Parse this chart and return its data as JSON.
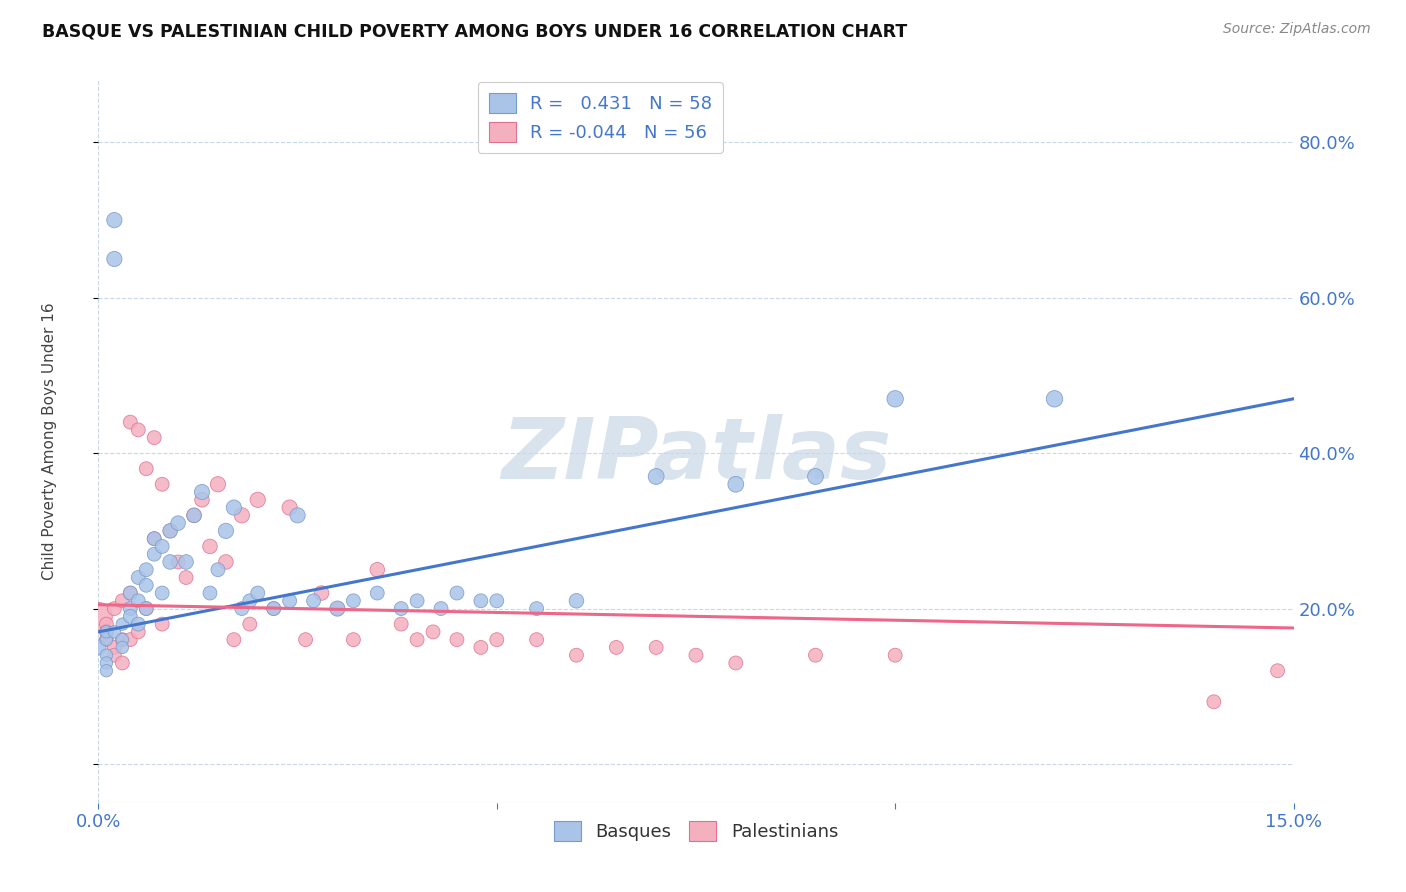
{
  "title": "BASQUE VS PALESTINIAN CHILD POVERTY AMONG BOYS UNDER 16 CORRELATION CHART",
  "source": "Source: ZipAtlas.com",
  "ylabel": "Child Poverty Among Boys Under 16",
  "xlim": [
    0.0,
    0.15
  ],
  "ylim": [
    -0.05,
    0.88
  ],
  "xticks": [
    0.0,
    0.05,
    0.1,
    0.15
  ],
  "xtick_labels": [
    "0.0%",
    "",
    "",
    "15.0%"
  ],
  "yticks_right": [
    0.0,
    0.2,
    0.4,
    0.6,
    0.8
  ],
  "ytick_right_labels": [
    "",
    "20.0%",
    "40.0%",
    "60.0%",
    "80.0%"
  ],
  "basque_color": "#aac4e8",
  "basque_edge": "#7799cc",
  "palestinian_color": "#f5b0c0",
  "palestinian_edge": "#e07090",
  "trend_blue": "#4477cc",
  "trend_pink": "#ee6688",
  "R_basque": 0.431,
  "N_basque": 58,
  "R_palestinian": -0.044,
  "N_palestinian": 56,
  "watermark": "ZIPatlas",
  "basque_x": [
    0.0,
    0.001,
    0.001,
    0.001,
    0.001,
    0.001,
    0.002,
    0.002,
    0.002,
    0.003,
    0.003,
    0.003,
    0.004,
    0.004,
    0.004,
    0.005,
    0.005,
    0.005,
    0.006,
    0.006,
    0.006,
    0.007,
    0.007,
    0.008,
    0.008,
    0.009,
    0.009,
    0.01,
    0.011,
    0.012,
    0.013,
    0.014,
    0.015,
    0.016,
    0.017,
    0.018,
    0.019,
    0.02,
    0.022,
    0.024,
    0.025,
    0.027,
    0.03,
    0.032,
    0.035,
    0.038,
    0.04,
    0.043,
    0.045,
    0.048,
    0.05,
    0.055,
    0.06,
    0.07,
    0.08,
    0.09,
    0.1,
    0.12
  ],
  "basque_y": [
    0.15,
    0.14,
    0.13,
    0.12,
    0.16,
    0.17,
    0.65,
    0.7,
    0.17,
    0.16,
    0.15,
    0.18,
    0.22,
    0.2,
    0.19,
    0.24,
    0.21,
    0.18,
    0.25,
    0.23,
    0.2,
    0.27,
    0.29,
    0.28,
    0.22,
    0.3,
    0.26,
    0.31,
    0.26,
    0.32,
    0.35,
    0.22,
    0.25,
    0.3,
    0.33,
    0.2,
    0.21,
    0.22,
    0.2,
    0.21,
    0.32,
    0.21,
    0.2,
    0.21,
    0.22,
    0.2,
    0.21,
    0.2,
    0.22,
    0.21,
    0.21,
    0.2,
    0.21,
    0.37,
    0.36,
    0.37,
    0.47,
    0.47
  ],
  "basque_sizes": [
    120,
    80,
    80,
    80,
    80,
    80,
    120,
    120,
    80,
    80,
    80,
    80,
    100,
    100,
    100,
    100,
    100,
    100,
    100,
    100,
    100,
    100,
    100,
    100,
    100,
    110,
    110,
    110,
    110,
    110,
    120,
    100,
    100,
    120,
    120,
    100,
    100,
    100,
    100,
    100,
    120,
    100,
    120,
    100,
    100,
    100,
    100,
    100,
    100,
    100,
    100,
    100,
    110,
    130,
    130,
    130,
    140,
    140
  ],
  "palestinian_x": [
    0.0,
    0.001,
    0.001,
    0.001,
    0.002,
    0.002,
    0.002,
    0.003,
    0.003,
    0.003,
    0.004,
    0.004,
    0.004,
    0.005,
    0.005,
    0.006,
    0.006,
    0.007,
    0.007,
    0.008,
    0.008,
    0.009,
    0.01,
    0.011,
    0.012,
    0.013,
    0.014,
    0.015,
    0.016,
    0.017,
    0.018,
    0.019,
    0.02,
    0.022,
    0.024,
    0.026,
    0.028,
    0.03,
    0.032,
    0.035,
    0.038,
    0.04,
    0.042,
    0.045,
    0.048,
    0.05,
    0.055,
    0.06,
    0.065,
    0.07,
    0.075,
    0.08,
    0.09,
    0.1,
    0.14,
    0.148
  ],
  "palestinian_y": [
    0.19,
    0.18,
    0.17,
    0.16,
    0.2,
    0.15,
    0.14,
    0.21,
    0.16,
    0.13,
    0.44,
    0.22,
    0.16,
    0.43,
    0.17,
    0.38,
    0.2,
    0.42,
    0.29,
    0.36,
    0.18,
    0.3,
    0.26,
    0.24,
    0.32,
    0.34,
    0.28,
    0.36,
    0.26,
    0.16,
    0.32,
    0.18,
    0.34,
    0.2,
    0.33,
    0.16,
    0.22,
    0.2,
    0.16,
    0.25,
    0.18,
    0.16,
    0.17,
    0.16,
    0.15,
    0.16,
    0.16,
    0.14,
    0.15,
    0.15,
    0.14,
    0.13,
    0.14,
    0.14,
    0.08,
    0.12
  ],
  "palestinian_sizes": [
    400,
    100,
    100,
    100,
    100,
    100,
    100,
    100,
    100,
    100,
    100,
    100,
    100,
    100,
    100,
    100,
    100,
    100,
    100,
    100,
    100,
    100,
    100,
    100,
    110,
    110,
    110,
    120,
    110,
    100,
    120,
    100,
    120,
    100,
    120,
    100,
    110,
    100,
    100,
    110,
    100,
    100,
    100,
    100,
    100,
    100,
    100,
    100,
    100,
    100,
    100,
    100,
    100,
    100,
    100,
    100
  ],
  "trend_blue_x0": 0.0,
  "trend_blue_y0": 0.17,
  "trend_blue_x1": 0.15,
  "trend_blue_y1": 0.47,
  "trend_pink_x0": 0.0,
  "trend_pink_y0": 0.205,
  "trend_pink_x1": 0.15,
  "trend_pink_y1": 0.175
}
